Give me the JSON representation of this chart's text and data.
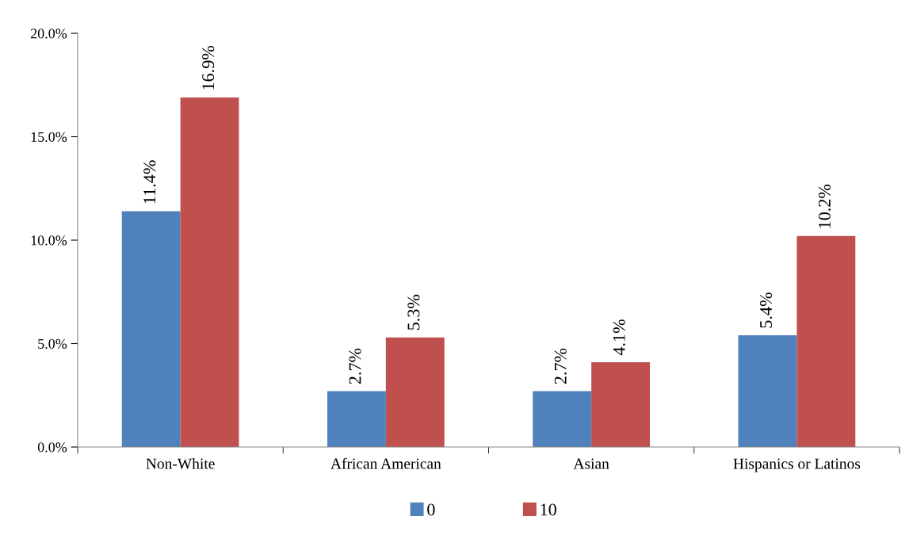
{
  "chart_data": {
    "type": "bar",
    "categories": [
      "Non-White",
      "African American",
      "Asian",
      "Hispanics or Latinos"
    ],
    "series": [
      {
        "name": "0",
        "color": "#4f81bd",
        "values": [
          11.4,
          2.7,
          2.7,
          5.4
        ],
        "value_labels": [
          "11.4%",
          "2.7%",
          "2.7%",
          "5.4%"
        ]
      },
      {
        "name": "10",
        "color": "#c0504d",
        "values": [
          16.9,
          5.3,
          4.1,
          10.2
        ],
        "value_labels": [
          "16.9%",
          "5.3%",
          "4.1%",
          "10.2%"
        ]
      }
    ],
    "ylim": [
      0,
      20
    ],
    "yticks": [
      {
        "value": 0,
        "label": "0.0%"
      },
      {
        "value": 5,
        "label": "5.0%"
      },
      {
        "value": 10,
        "label": "10.0%"
      },
      {
        "value": 15,
        "label": "15.0%"
      },
      {
        "value": 20,
        "label": "20.0%"
      }
    ],
    "grid": false,
    "legend": "bottom"
  }
}
